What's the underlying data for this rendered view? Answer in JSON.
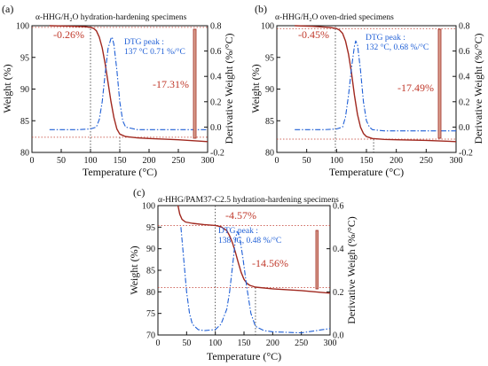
{
  "chart_data": [
    {
      "type": "line",
      "panel_label": "(a)",
      "title": "α-HHG/H₂O hydration-hardening specimens",
      "xlabel": "Temperature (°C)",
      "ylabel": "Weight (%)",
      "y2label": "Derivative Weight (%/°C)",
      "xlim": [
        0,
        300
      ],
      "ylim": [
        80,
        100
      ],
      "y2lim": [
        -0.2,
        0.8
      ],
      "xticks": [
        "0",
        "50",
        "100",
        "150",
        "200",
        "250",
        "300"
      ],
      "yticks": [
        "80",
        "85",
        "90",
        "95",
        "100"
      ],
      "y2ticks": [
        "-0.2",
        "0.0",
        "0.2",
        "0.4",
        "0.6",
        "0.8"
      ],
      "series": [
        {
          "axis": "left",
          "color": "#a0281f",
          "style": "solid",
          "x": [
            30,
            60,
            90,
            100,
            105,
            110,
            115,
            120,
            125,
            130,
            135,
            140,
            145,
            150,
            160,
            180,
            200,
            250,
            300
          ],
          "y": [
            100,
            99.95,
            99.85,
            99.74,
            99.6,
            99.2,
            98.2,
            96.5,
            94,
            91,
            88,
            85.5,
            83.7,
            82.9,
            82.5,
            82.3,
            82.2,
            82.0,
            81.7
          ]
        },
        {
          "axis": "right",
          "color": "#1f5fd6",
          "style": "dashdot",
          "x": [
            30,
            80,
            100,
            110,
            115,
            120,
            125,
            130,
            135,
            137,
            140,
            145,
            150,
            155,
            160,
            180,
            200,
            250,
            300
          ],
          "y": [
            -0.02,
            -0.02,
            -0.015,
            0.0,
            0.06,
            0.2,
            0.42,
            0.62,
            0.7,
            0.71,
            0.65,
            0.45,
            0.2,
            0.05,
            0.0,
            -0.02,
            -0.02,
            -0.02,
            -0.02
          ]
        }
      ],
      "annotations": [
        {
          "text": "-0.26%",
          "color": "#c0392b"
        },
        {
          "text": "-17.31%",
          "color": "#c0392b"
        }
      ],
      "dtg_peak": {
        "line1": "DTG peak :",
        "line2": "137 °C 0.71 %/°C"
      },
      "guides": {
        "x_onset": 100,
        "x_end": 150,
        "y_upper": 99.74,
        "y_lower": 82.4
      }
    },
    {
      "type": "line",
      "panel_label": "(b)",
      "title": "α-HHG/H₂O oven-dried specimens",
      "xlabel": "Temperature (°C)",
      "ylabel": "Weight (%)",
      "y2label": "Derivative Weight (%/°C)",
      "xlim": [
        0,
        300
      ],
      "ylim": [
        80,
        100
      ],
      "y2lim": [
        -0.2,
        0.8
      ],
      "xticks": [
        "0",
        "50",
        "100",
        "150",
        "200",
        "250",
        "300"
      ],
      "yticks": [
        "80",
        "85",
        "90",
        "95",
        "100"
      ],
      "y2ticks": [
        "-0.2",
        "0.0",
        "0.2",
        "0.4",
        "0.6",
        "0.8"
      ],
      "series": [
        {
          "axis": "left",
          "color": "#a0281f",
          "style": "solid",
          "x": [
            30,
            60,
            90,
            100,
            105,
            110,
            115,
            120,
            125,
            130,
            135,
            140,
            145,
            150,
            160,
            180,
            200,
            250,
            300
          ],
          "y": [
            100,
            99.9,
            99.7,
            99.55,
            99.3,
            98.8,
            97.6,
            95.5,
            92.5,
            89,
            86,
            84,
            83,
            82.5,
            82.2,
            82.05,
            82.0,
            81.9,
            81.7
          ]
        },
        {
          "axis": "right",
          "color": "#1f5fd6",
          "style": "dashdot",
          "x": [
            30,
            80,
            100,
            110,
            115,
            120,
            125,
            130,
            132,
            135,
            140,
            145,
            150,
            155,
            160,
            180,
            200,
            250,
            300
          ],
          "y": [
            -0.02,
            -0.02,
            -0.015,
            0.0,
            0.08,
            0.25,
            0.47,
            0.64,
            0.68,
            0.65,
            0.45,
            0.2,
            0.05,
            0.0,
            -0.02,
            -0.03,
            -0.03,
            -0.03,
            -0.03
          ]
        }
      ],
      "annotations": [
        {
          "text": "-0.45%",
          "color": "#c0392b"
        },
        {
          "text": "-17.49%",
          "color": "#c0392b"
        }
      ],
      "dtg_peak": {
        "line1": "DTG peak :",
        "line2": "132 °C, 0.68 %/°C"
      },
      "guides": {
        "x_onset": 98,
        "x_end": 162,
        "y_upper": 99.55,
        "y_lower": 82.1
      }
    },
    {
      "type": "line",
      "panel_label": "(c)",
      "title": "α-HHG/PAM37-C2.5 hydration-hardening specimens",
      "xlabel": "Temperature (°C)",
      "ylabel": "Weight (%)",
      "y2label": "Derivative Weigh (%/°C)",
      "xlim": [
        0,
        300
      ],
      "ylim": [
        70,
        100
      ],
      "y2lim": [
        0.0,
        0.6
      ],
      "xticks": [
        "0",
        "50",
        "100",
        "150",
        "200",
        "250",
        "300"
      ],
      "yticks": [
        "70",
        "75",
        "80",
        "85",
        "90",
        "95",
        "100"
      ],
      "y2ticks": [
        "0.0",
        "0.2",
        "0.4",
        "0.6"
      ],
      "series": [
        {
          "axis": "left",
          "color": "#a0281f",
          "style": "solid",
          "x": [
            35,
            38,
            42,
            48,
            60,
            80,
            100,
            110,
            120,
            125,
            130,
            135,
            140,
            145,
            150,
            155,
            160,
            170,
            200,
            250,
            300
          ],
          "y": [
            100,
            98,
            96.8,
            96.2,
            95.9,
            95.6,
            95.4,
            95.1,
            94.2,
            93,
            91.3,
            89.2,
            86.8,
            84.5,
            82.9,
            82.0,
            81.5,
            81.1,
            80.7,
            80.3,
            79.7
          ]
        },
        {
          "axis": "right",
          "color": "#1f5fd6",
          "style": "dashdot",
          "x": [
            40,
            45,
            50,
            55,
            60,
            70,
            80,
            100,
            110,
            120,
            125,
            130,
            135,
            138,
            142,
            148,
            155,
            162,
            170,
            185,
            200,
            250,
            300
          ],
          "y": [
            0.5,
            0.35,
            0.2,
            0.1,
            0.05,
            0.025,
            0.02,
            0.025,
            0.05,
            0.12,
            0.2,
            0.32,
            0.44,
            0.48,
            0.46,
            0.36,
            0.22,
            0.1,
            0.04,
            0.02,
            0.015,
            0.01,
            0.03
          ]
        }
      ],
      "annotations": [
        {
          "text": "-4.57%",
          "color": "#c0392b"
        },
        {
          "text": "-14.56%",
          "color": "#c0392b"
        }
      ],
      "dtg_peak": {
        "line1": "DTG peak :",
        "line2": "138 °C, 0.48 %/°C"
      },
      "guides": {
        "x_onset": 100,
        "x_end": 170,
        "y_upper": 95.4,
        "y_lower": 81.0
      }
    }
  ]
}
